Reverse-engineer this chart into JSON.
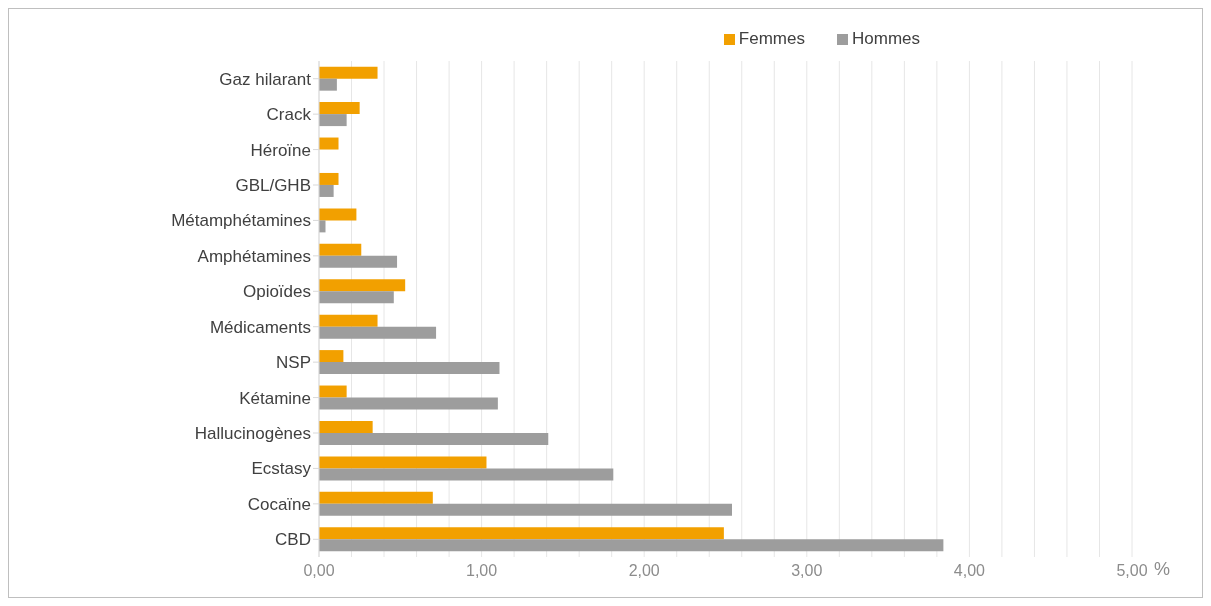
{
  "chart_data": {
    "type": "bar",
    "orientation": "horizontal",
    "xlabel": "%",
    "categories": [
      "Gaz hilarant",
      "Crack",
      "Héroïne",
      "GBL/GHB",
      "Métamphétamines",
      "Amphétamines",
      "Opioïdes",
      "Médicaments",
      "NSP",
      "Kétamine",
      "Hallucinogènes",
      "Ecstasy",
      "Cocaïne",
      "CBD"
    ],
    "series": [
      {
        "name": "Femmes",
        "color": "#f2a000",
        "values": [
          0.36,
          0.25,
          0.12,
          0.12,
          0.23,
          0.26,
          0.53,
          0.36,
          0.15,
          0.17,
          0.33,
          1.03,
          0.7,
          2.49
        ]
      },
      {
        "name": "Hommes",
        "color": "#9d9d9d",
        "values": [
          0.11,
          0.17,
          null,
          0.09,
          0.04,
          0.48,
          0.46,
          0.72,
          1.11,
          1.1,
          1.41,
          1.81,
          2.54,
          3.84
        ]
      }
    ],
    "xlim": [
      0,
      5
    ],
    "xticks": [
      {
        "value": 0,
        "label": "0,00"
      },
      {
        "value": 0.2,
        "label": null
      },
      {
        "value": 0.4,
        "label": null
      },
      {
        "value": 0.6,
        "label": null
      },
      {
        "value": 0.8,
        "label": null
      },
      {
        "value": 1,
        "label": "1,00"
      },
      {
        "value": 1.2,
        "label": null
      },
      {
        "value": 1.4,
        "label": null
      },
      {
        "value": 1.6,
        "label": null
      },
      {
        "value": 1.8,
        "label": null
      },
      {
        "value": 2,
        "label": "2,00"
      },
      {
        "value": 2.2,
        "label": null
      },
      {
        "value": 2.4,
        "label": null
      },
      {
        "value": 2.6,
        "label": null
      },
      {
        "value": 2.8,
        "label": null
      },
      {
        "value": 3,
        "label": "3,00"
      },
      {
        "value": 3.2,
        "label": null
      },
      {
        "value": 3.4,
        "label": null
      },
      {
        "value": 3.6,
        "label": null
      },
      {
        "value": 3.8,
        "label": null
      },
      {
        "value": 4,
        "label": "4,00"
      },
      {
        "value": 4.2,
        "label": null
      },
      {
        "value": 4.4,
        "label": null
      },
      {
        "value": 4.6,
        "label": null
      },
      {
        "value": 4.8,
        "label": null
      },
      {
        "value": 5,
        "label": "5,00"
      }
    ],
    "grid": "x",
    "legend": "top right"
  }
}
